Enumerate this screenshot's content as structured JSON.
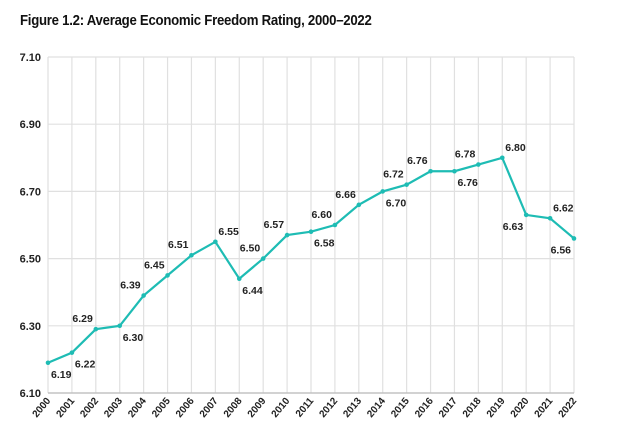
{
  "chart_data": {
    "type": "line",
    "title": "Figure 1.2: Average Economic Freedom Rating, 2000–2022",
    "xlabel": "",
    "ylabel": "",
    "categories": [
      "2000",
      "2001",
      "2002",
      "2003",
      "2004",
      "2005",
      "2006",
      "2007",
      "2008",
      "2009",
      "2010",
      "2011",
      "2012",
      "2013",
      "2014",
      "2015",
      "2016",
      "2017",
      "2018",
      "2019",
      "2020",
      "2021",
      "2022"
    ],
    "values": [
      6.19,
      6.22,
      6.29,
      6.3,
      6.39,
      6.45,
      6.51,
      6.55,
      6.44,
      6.5,
      6.57,
      6.58,
      6.6,
      6.66,
      6.7,
      6.72,
      6.76,
      6.76,
      6.78,
      6.8,
      6.63,
      6.62,
      6.56
    ],
    "data_labels": [
      "6.19",
      "6.22",
      "6.29",
      "6.30",
      "6.39",
      "6.45",
      "6.51",
      "6.55",
      "6.44",
      "6.50",
      "6.57",
      "6.58",
      "6.60",
      "6.66",
      "6.70",
      "6.72",
      "6.76",
      "6.76",
      "6.78",
      "6.80",
      "6.63",
      "6.62",
      "6.56"
    ],
    "ylim": [
      6.1,
      7.1
    ],
    "yticks": [
      "6.10",
      "6.30",
      "6.50",
      "6.70",
      "6.90",
      "7.10"
    ],
    "grid": true,
    "legend": "none",
    "line_color": "#1ebcb4",
    "grid_color": "#e0e0e0"
  }
}
